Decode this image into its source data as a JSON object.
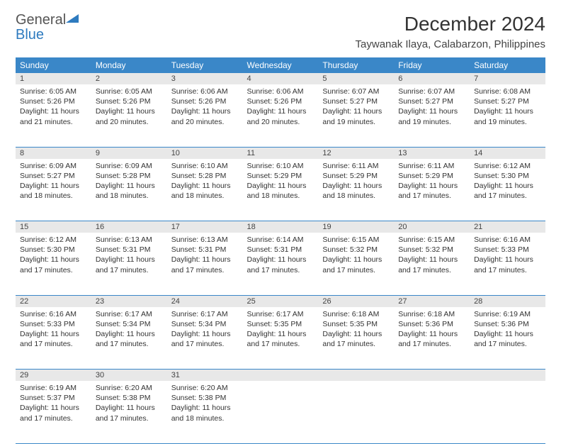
{
  "brand": {
    "part1": "General",
    "part2": "Blue",
    "color_general": "#555555",
    "color_blue": "#2e7bbf"
  },
  "title": "December 2024",
  "location": "Taywanak Ilaya, Calabarzon, Philippines",
  "header_bg": "#3a87c8",
  "header_text_color": "#ffffff",
  "daynum_bg": "#e8e8e8",
  "border_color": "#3a87c8",
  "page_bg": "#ffffff",
  "body_text_color": "#333333",
  "font_family": "Arial",
  "title_fontsize": 28,
  "location_fontsize": 15,
  "weekday_fontsize": 12,
  "cell_fontsize": 10.5,
  "days_of_week": [
    "Sunday",
    "Monday",
    "Tuesday",
    "Wednesday",
    "Thursday",
    "Friday",
    "Saturday"
  ],
  "weeks": [
    [
      {
        "n": "1",
        "sr": "Sunrise: 6:05 AM",
        "ss": "Sunset: 5:26 PM",
        "d1": "Daylight: 11 hours",
        "d2": "and 21 minutes."
      },
      {
        "n": "2",
        "sr": "Sunrise: 6:05 AM",
        "ss": "Sunset: 5:26 PM",
        "d1": "Daylight: 11 hours",
        "d2": "and 20 minutes."
      },
      {
        "n": "3",
        "sr": "Sunrise: 6:06 AM",
        "ss": "Sunset: 5:26 PM",
        "d1": "Daylight: 11 hours",
        "d2": "and 20 minutes."
      },
      {
        "n": "4",
        "sr": "Sunrise: 6:06 AM",
        "ss": "Sunset: 5:26 PM",
        "d1": "Daylight: 11 hours",
        "d2": "and 20 minutes."
      },
      {
        "n": "5",
        "sr": "Sunrise: 6:07 AM",
        "ss": "Sunset: 5:27 PM",
        "d1": "Daylight: 11 hours",
        "d2": "and 19 minutes."
      },
      {
        "n": "6",
        "sr": "Sunrise: 6:07 AM",
        "ss": "Sunset: 5:27 PM",
        "d1": "Daylight: 11 hours",
        "d2": "and 19 minutes."
      },
      {
        "n": "7",
        "sr": "Sunrise: 6:08 AM",
        "ss": "Sunset: 5:27 PM",
        "d1": "Daylight: 11 hours",
        "d2": "and 19 minutes."
      }
    ],
    [
      {
        "n": "8",
        "sr": "Sunrise: 6:09 AM",
        "ss": "Sunset: 5:27 PM",
        "d1": "Daylight: 11 hours",
        "d2": "and 18 minutes."
      },
      {
        "n": "9",
        "sr": "Sunrise: 6:09 AM",
        "ss": "Sunset: 5:28 PM",
        "d1": "Daylight: 11 hours",
        "d2": "and 18 minutes."
      },
      {
        "n": "10",
        "sr": "Sunrise: 6:10 AM",
        "ss": "Sunset: 5:28 PM",
        "d1": "Daylight: 11 hours",
        "d2": "and 18 minutes."
      },
      {
        "n": "11",
        "sr": "Sunrise: 6:10 AM",
        "ss": "Sunset: 5:29 PM",
        "d1": "Daylight: 11 hours",
        "d2": "and 18 minutes."
      },
      {
        "n": "12",
        "sr": "Sunrise: 6:11 AM",
        "ss": "Sunset: 5:29 PM",
        "d1": "Daylight: 11 hours",
        "d2": "and 18 minutes."
      },
      {
        "n": "13",
        "sr": "Sunrise: 6:11 AM",
        "ss": "Sunset: 5:29 PM",
        "d1": "Daylight: 11 hours",
        "d2": "and 17 minutes."
      },
      {
        "n": "14",
        "sr": "Sunrise: 6:12 AM",
        "ss": "Sunset: 5:30 PM",
        "d1": "Daylight: 11 hours",
        "d2": "and 17 minutes."
      }
    ],
    [
      {
        "n": "15",
        "sr": "Sunrise: 6:12 AM",
        "ss": "Sunset: 5:30 PM",
        "d1": "Daylight: 11 hours",
        "d2": "and 17 minutes."
      },
      {
        "n": "16",
        "sr": "Sunrise: 6:13 AM",
        "ss": "Sunset: 5:31 PM",
        "d1": "Daylight: 11 hours",
        "d2": "and 17 minutes."
      },
      {
        "n": "17",
        "sr": "Sunrise: 6:13 AM",
        "ss": "Sunset: 5:31 PM",
        "d1": "Daylight: 11 hours",
        "d2": "and 17 minutes."
      },
      {
        "n": "18",
        "sr": "Sunrise: 6:14 AM",
        "ss": "Sunset: 5:31 PM",
        "d1": "Daylight: 11 hours",
        "d2": "and 17 minutes."
      },
      {
        "n": "19",
        "sr": "Sunrise: 6:15 AM",
        "ss": "Sunset: 5:32 PM",
        "d1": "Daylight: 11 hours",
        "d2": "and 17 minutes."
      },
      {
        "n": "20",
        "sr": "Sunrise: 6:15 AM",
        "ss": "Sunset: 5:32 PM",
        "d1": "Daylight: 11 hours",
        "d2": "and 17 minutes."
      },
      {
        "n": "21",
        "sr": "Sunrise: 6:16 AM",
        "ss": "Sunset: 5:33 PM",
        "d1": "Daylight: 11 hours",
        "d2": "and 17 minutes."
      }
    ],
    [
      {
        "n": "22",
        "sr": "Sunrise: 6:16 AM",
        "ss": "Sunset: 5:33 PM",
        "d1": "Daylight: 11 hours",
        "d2": "and 17 minutes."
      },
      {
        "n": "23",
        "sr": "Sunrise: 6:17 AM",
        "ss": "Sunset: 5:34 PM",
        "d1": "Daylight: 11 hours",
        "d2": "and 17 minutes."
      },
      {
        "n": "24",
        "sr": "Sunrise: 6:17 AM",
        "ss": "Sunset: 5:34 PM",
        "d1": "Daylight: 11 hours",
        "d2": "and 17 minutes."
      },
      {
        "n": "25",
        "sr": "Sunrise: 6:17 AM",
        "ss": "Sunset: 5:35 PM",
        "d1": "Daylight: 11 hours",
        "d2": "and 17 minutes."
      },
      {
        "n": "26",
        "sr": "Sunrise: 6:18 AM",
        "ss": "Sunset: 5:35 PM",
        "d1": "Daylight: 11 hours",
        "d2": "and 17 minutes."
      },
      {
        "n": "27",
        "sr": "Sunrise: 6:18 AM",
        "ss": "Sunset: 5:36 PM",
        "d1": "Daylight: 11 hours",
        "d2": "and 17 minutes."
      },
      {
        "n": "28",
        "sr": "Sunrise: 6:19 AM",
        "ss": "Sunset: 5:36 PM",
        "d1": "Daylight: 11 hours",
        "d2": "and 17 minutes."
      }
    ],
    [
      {
        "n": "29",
        "sr": "Sunrise: 6:19 AM",
        "ss": "Sunset: 5:37 PM",
        "d1": "Daylight: 11 hours",
        "d2": "and 17 minutes."
      },
      {
        "n": "30",
        "sr": "Sunrise: 6:20 AM",
        "ss": "Sunset: 5:38 PM",
        "d1": "Daylight: 11 hours",
        "d2": "and 17 minutes."
      },
      {
        "n": "31",
        "sr": "Sunrise: 6:20 AM",
        "ss": "Sunset: 5:38 PM",
        "d1": "Daylight: 11 hours",
        "d2": "and 18 minutes."
      },
      null,
      null,
      null,
      null
    ]
  ]
}
